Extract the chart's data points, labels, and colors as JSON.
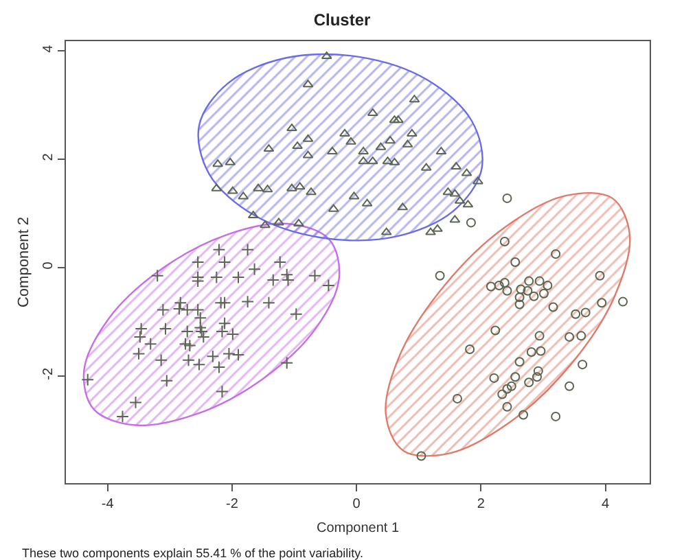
{
  "chart_data": {
    "type": "scatter",
    "title": "Cluster",
    "xlabel": "Component 1",
    "ylabel": "Component 2",
    "annotations": [
      "These two components explain 55.41 % of the point variability."
    ],
    "xlim": [
      -4.67,
      4.71
    ],
    "ylim": [
      -3.98,
      4.18
    ],
    "xticks": [
      -4,
      -2,
      0,
      2,
      4
    ],
    "yticks": [
      -2,
      0,
      2,
      4
    ],
    "series": [
      {
        "type": "area",
        "color": "#c66ee8",
        "x": [
          -0.44,
          -1.11,
          -2.1,
          -3.16,
          -4.0,
          -4.38,
          -4.22,
          -3.55,
          -2.56,
          -1.5,
          -0.66,
          -0.28
        ],
        "values": [
          0.52,
          0.81,
          0.6,
          -0.05,
          -0.97,
          -1.91,
          -2.62,
          -2.91,
          -2.7,
          -2.05,
          -1.13,
          -0.19
        ]
      },
      {
        "type": "area",
        "color": "#6b6be6",
        "x": [
          2.01,
          1.85,
          1.13,
          0.04,
          -1.14,
          -2.07,
          -2.53,
          -2.37,
          -1.65,
          -0.56,
          0.62,
          1.55
        ],
        "values": [
          1.82,
          2.71,
          3.47,
          3.89,
          3.87,
          3.4,
          2.62,
          1.73,
          0.97,
          0.55,
          0.57,
          1.04
        ]
      },
      {
        "type": "area",
        "color": "#e07a6a",
        "x": [
          4.11,
          3.37,
          2.39,
          1.42,
          0.71,
          0.47,
          0.75,
          1.49,
          2.47,
          3.45,
          4.15,
          4.39
        ],
        "values": [
          1.28,
          1.33,
          0.75,
          -0.32,
          -1.58,
          -2.7,
          -3.38,
          -3.43,
          -2.85,
          -1.78,
          -0.52,
          0.6
        ]
      },
      {
        "marker": "cross",
        "color": "#5b6650",
        "x": [
          -2.21,
          -1.75,
          -2.55,
          -2.12,
          -1.23,
          -3.2,
          -2.55,
          -2.55,
          -2.25,
          -1.9,
          -1.64,
          -1.34,
          -1.12,
          -1.1,
          -0.67,
          -0.45,
          -3.11,
          -2.83,
          -2.85,
          -2.72,
          -2.55,
          -2.18,
          -2.12,
          -1.75,
          -1.41,
          -0.97,
          -2.51,
          -2.51,
          -2.12,
          -3.46,
          -3.07,
          -2.72,
          -2.49,
          -2.46,
          -2.16,
          -1.99,
          -3.48,
          -3.31,
          -2.75,
          -2.68,
          -3.5,
          -3.14,
          -2.7,
          -2.53,
          -2.31,
          -2.05,
          -1.9,
          -2.21,
          -1.12,
          -4.32,
          -3.05,
          -2.16,
          -3.55,
          -3.76
        ],
        "values": [
          0.33,
          0.33,
          0.1,
          0.1,
          0.1,
          -0.15,
          -0.18,
          -0.25,
          -0.18,
          -0.18,
          -0.03,
          -0.23,
          -0.13,
          -0.23,
          -0.15,
          -0.33,
          -0.78,
          -0.65,
          -0.76,
          -0.78,
          -0.78,
          -0.65,
          -0.65,
          -0.63,
          -0.65,
          -0.86,
          -0.93,
          -1.11,
          -1.03,
          -1.13,
          -1.13,
          -1.18,
          -1.18,
          -1.28,
          -1.18,
          -1.23,
          -1.28,
          -1.41,
          -1.41,
          -1.44,
          -1.59,
          -1.71,
          -1.71,
          -1.79,
          -1.64,
          -1.59,
          -1.61,
          -1.84,
          -1.76,
          -2.07,
          -2.09,
          -2.29,
          -2.49,
          -2.75
        ]
      },
      {
        "marker": "triangle",
        "color": "#5b6650",
        "x": [
          -0.48,
          -0.78,
          0.93,
          0.26,
          0.61,
          0.67,
          -1.04,
          -0.19,
          0.89,
          -0.78,
          -0.09,
          0.54,
          -1.41,
          -0.95,
          -0.39,
          0.11,
          0.39,
          0.82,
          -0.78,
          1.36,
          0.11,
          0.26,
          0.5,
          0.61,
          -2.23,
          -2.03,
          1.12,
          1.6,
          1.77,
          1.95,
          -2.25,
          -1.99,
          -1.82,
          -1.58,
          -1.43,
          -1.04,
          -0.91,
          -0.73,
          -0.04,
          0.17,
          -0.37,
          0.74,
          1.47,
          1.58,
          1.66,
          1.79,
          -1.66,
          -1.25,
          -0.93,
          -1.47,
          0.48,
          1.19,
          1.3,
          1.58
        ],
        "values": [
          3.9,
          3.38,
          3.1,
          2.85,
          2.72,
          2.72,
          2.57,
          2.47,
          2.47,
          2.37,
          2.32,
          2.34,
          2.19,
          2.24,
          2.14,
          2.14,
          2.22,
          2.27,
          2.07,
          2.14,
          1.96,
          1.96,
          1.96,
          1.94,
          1.91,
          1.94,
          1.84,
          1.86,
          1.74,
          1.59,
          1.46,
          1.41,
          1.31,
          1.46,
          1.44,
          1.46,
          1.49,
          1.39,
          1.31,
          1.18,
          1.08,
          1.11,
          1.39,
          1.36,
          1.23,
          1.16,
          0.96,
          0.83,
          0.81,
          0.78,
          0.65,
          0.65,
          0.71,
          0.88
        ]
      },
      {
        "marker": "circle",
        "color": "#5b6650",
        "x": [
          2.42,
          1.84,
          2.38,
          3.2,
          2.55,
          1.34,
          3.91,
          2.16,
          2.29,
          2.38,
          2.42,
          2.64,
          2.77,
          2.94,
          3.07,
          2.75,
          2.85,
          3.01,
          2.62,
          2.62,
          3.16,
          3.94,
          4.28,
          3.52,
          3.68,
          2.23,
          2.94,
          3.42,
          3.61,
          1.82,
          2.81,
          2.96,
          2.62,
          3.63,
          2.21,
          2.55,
          2.77,
          2.9,
          2.92,
          2.49,
          2.42,
          2.34,
          3.42,
          1.62,
          2.42,
          2.68,
          3.2,
          1.04
        ],
        "values": [
          1.28,
          0.83,
          0.48,
          0.25,
          0.1,
          -0.15,
          -0.15,
          -0.35,
          -0.33,
          -0.28,
          -0.43,
          -0.4,
          -0.25,
          -0.25,
          -0.33,
          -0.43,
          -0.53,
          -0.48,
          -0.55,
          -0.68,
          -0.73,
          -0.65,
          -0.63,
          -0.86,
          -0.83,
          -1.16,
          -1.26,
          -1.28,
          -1.26,
          -1.51,
          -1.56,
          -1.54,
          -1.74,
          -1.79,
          -2.04,
          -2.02,
          -2.12,
          -2.02,
          -1.91,
          -2.19,
          -2.24,
          -2.34,
          -2.19,
          -2.42,
          -2.57,
          -2.72,
          -2.75,
          -3.48
        ]
      }
    ]
  }
}
